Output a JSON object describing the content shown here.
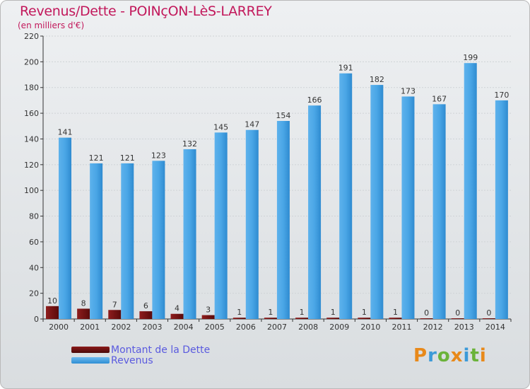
{
  "header": {
    "title": "Revenus/Dette - POINçON-LèS-LARREY",
    "subtitle": "(en milliers d'€)"
  },
  "legend": {
    "debt_label": "Montant de la Dette",
    "revenue_label": "Revenus"
  },
  "logo": {
    "text": "Proxiti"
  },
  "colors": {
    "revenue": "#3c9ad8",
    "debt": "#6e0f0f",
    "title": "#c2185b",
    "legend_text": "#5a5adf"
  },
  "chart_data": {
    "type": "bar",
    "title": "Revenus/Dette - POINçON-LèS-LARREY",
    "ylabel": "(en milliers d'€)",
    "xlabel": "",
    "ylim": [
      0,
      220
    ],
    "yticks": [
      0,
      20,
      40,
      60,
      80,
      100,
      120,
      140,
      160,
      180,
      200,
      220
    ],
    "grid": true,
    "categories": [
      "2000",
      "2001",
      "2002",
      "2003",
      "2004",
      "2005",
      "2006",
      "2007",
      "2008",
      "2009",
      "2010",
      "2011",
      "2012",
      "2013",
      "2014"
    ],
    "series": [
      {
        "name": "Montant de la Dette",
        "values": [
          10,
          8,
          7,
          6,
          4,
          3,
          1,
          1,
          1,
          1,
          1,
          1,
          0,
          0,
          0
        ]
      },
      {
        "name": "Revenus",
        "values": [
          141,
          121,
          121,
          123,
          132,
          145,
          147,
          154,
          166,
          191,
          182,
          173,
          167,
          199,
          170
        ]
      }
    ],
    "legend_position": "bottom-left"
  }
}
